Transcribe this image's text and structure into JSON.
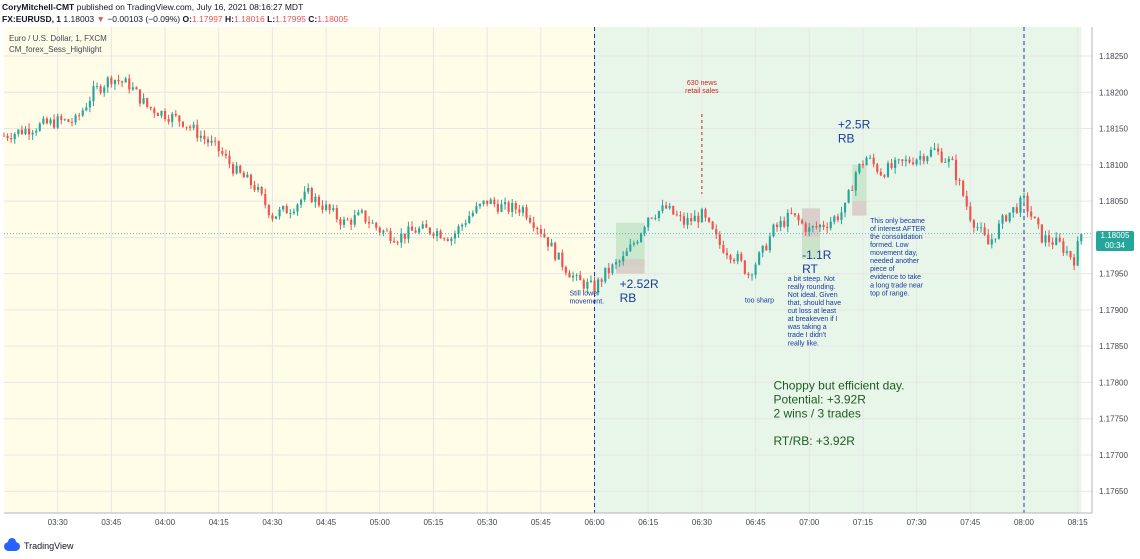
{
  "header": {
    "line1_user": "CoryMitchell-CMT",
    "line1_rest": " published on TradingView.com, July 16, 2021 08:16:27 MDT",
    "symbol": "FX:EURUSD, 1",
    "price": "1.18003",
    "arrow": "▼",
    "change": "−0.00103 (−0.09%)",
    "o_label": "O:",
    "o_value": "1.17997",
    "h_label": "H:",
    "h_value": "1.18016",
    "l_label": "L:",
    "l_value": "1.17995",
    "c_label": "C:",
    "c_value": "1.18005"
  },
  "legend": {
    "instrument": "Euro / U.S. Dollar, 1, FXCM",
    "indicator": "CM_forex_Sess_Highlight"
  },
  "price_tag": {
    "price": "1.18005",
    "time": "00:34"
  },
  "footer": {
    "brand": "TradingView"
  },
  "colors": {
    "bull": "#26a69a",
    "bear": "#ef5350",
    "session_asia": "#fffde7",
    "session_london": "#e8f5e9",
    "note_blue": "#1a3a9e",
    "note_green": "#1b5e20",
    "note_red": "#c62828"
  },
  "chart_data": {
    "type": "candlestick",
    "x_start": "03:15",
    "x_end": "08:19",
    "x_ticks": [
      "03:30",
      "03:45",
      "04:00",
      "04:15",
      "04:30",
      "04:45",
      "05:00",
      "05:15",
      "05:30",
      "05:45",
      "06:00",
      "06:15",
      "06:30",
      "06:45",
      "07:00",
      "07:15",
      "07:30",
      "07:45",
      "08:00",
      "08:15"
    ],
    "y_ticks": [
      "1.17650",
      "1.17700",
      "1.17750",
      "1.17800",
      "1.17850",
      "1.17900",
      "1.17950",
      "1.18000",
      "1.18050",
      "1.18100",
      "1.18150",
      "1.18200",
      "1.18250"
    ],
    "ylim": [
      1.1762,
      1.1829
    ],
    "grid": true,
    "sessions": [
      {
        "start": "03:15",
        "end": "06:00",
        "color": "#fffde7"
      },
      {
        "start": "06:00",
        "end": "08:16",
        "color": "#e8f5e9"
      }
    ],
    "vlines": [
      "06:00",
      "08:00"
    ],
    "news_marker": {
      "time": "06:30",
      "label1": "630 news",
      "label2": "retail sales"
    },
    "path": [
      [
        "03:15",
        1.1814
      ],
      [
        "03:22",
        1.1815
      ],
      [
        "03:30",
        1.1816
      ],
      [
        "03:35",
        1.1816
      ],
      [
        "03:40",
        1.182
      ],
      [
        "03:45",
        1.1822
      ],
      [
        "03:50",
        1.1821
      ],
      [
        "03:55",
        1.1818
      ],
      [
        "04:00",
        1.1817
      ],
      [
        "04:05",
        1.1816
      ],
      [
        "04:10",
        1.1814
      ],
      [
        "04:15",
        1.1812
      ],
      [
        "04:20",
        1.1809
      ],
      [
        "04:25",
        1.1807
      ],
      [
        "04:30",
        1.1803
      ],
      [
        "04:35",
        1.1804
      ],
      [
        "04:40",
        1.1806
      ],
      [
        "04:45",
        1.1804
      ],
      [
        "04:50",
        1.1802
      ],
      [
        "04:55",
        1.1803
      ],
      [
        "05:00",
        1.1801
      ],
      [
        "05:05",
        1.18
      ],
      [
        "05:10",
        1.1801
      ],
      [
        "05:15",
        1.1801
      ],
      [
        "05:20",
        1.18
      ],
      [
        "05:25",
        1.1803
      ],
      [
        "05:30",
        1.1805
      ],
      [
        "05:35",
        1.1804
      ],
      [
        "05:40",
        1.1804
      ],
      [
        "05:45",
        1.1801
      ],
      [
        "05:50",
        1.1797
      ],
      [
        "05:55",
        1.1794
      ],
      [
        "06:00",
        1.1793
      ],
      [
        "06:03",
        1.1795
      ],
      [
        "06:08",
        1.1797
      ],
      [
        "06:12",
        1.18
      ],
      [
        "06:15",
        1.1803
      ],
      [
        "06:20",
        1.1804
      ],
      [
        "06:25",
        1.1802
      ],
      [
        "06:30",
        1.1803
      ],
      [
        "06:35",
        1.1799
      ],
      [
        "06:40",
        1.1797
      ],
      [
        "06:43",
        1.1795
      ],
      [
        "06:47",
        1.1798
      ],
      [
        "06:50",
        1.1801
      ],
      [
        "06:55",
        1.1803
      ],
      [
        "07:00",
        1.1801
      ],
      [
        "07:05",
        1.1802
      ],
      [
        "07:08",
        1.1803
      ],
      [
        "07:10",
        1.1804
      ],
      [
        "07:13",
        1.1809
      ],
      [
        "07:16",
        1.1811
      ],
      [
        "07:20",
        1.1809
      ],
      [
        "07:25",
        1.181
      ],
      [
        "07:30",
        1.1811
      ],
      [
        "07:35",
        1.1812
      ],
      [
        "07:40",
        1.181
      ],
      [
        "07:45",
        1.1803
      ],
      [
        "07:50",
        1.1799
      ],
      [
        "07:55",
        1.1803
      ],
      [
        "08:00",
        1.1805
      ],
      [
        "08:05",
        1.18
      ],
      [
        "08:10",
        1.1799
      ],
      [
        "08:14",
        1.1797
      ],
      [
        "08:16",
        1.18005
      ]
    ],
    "trade_boxes": [
      {
        "start": "06:06",
        "end": "06:14",
        "top": 1.1802,
        "bottom": 1.1796,
        "color": "#c8e6c9"
      },
      {
        "start": "06:06",
        "end": "06:14",
        "top": 1.1797,
        "bottom": 1.1795,
        "color": "#d7ccc8"
      },
      {
        "start": "06:58",
        "end": "07:03",
        "top": 1.1804,
        "bottom": 1.1797,
        "color": "#d7ccc8"
      },
      {
        "start": "06:58",
        "end": "07:03",
        "top": 1.18,
        "bottom": 1.1797,
        "color": "#c8e6c9"
      },
      {
        "start": "07:12",
        "end": "07:16",
        "top": 1.181,
        "bottom": 1.1805,
        "color": "#c8e6c9"
      },
      {
        "start": "07:12",
        "end": "07:16",
        "top": 1.1805,
        "bottom": 1.1803,
        "color": "#d7ccc8"
      }
    ],
    "annotations": [
      {
        "x": "05:53",
        "y": 1.1792,
        "size": 7,
        "color": "#1a3a9e",
        "bold": false,
        "lines": [
          "Still lower",
          "movement."
        ]
      },
      {
        "x": "06:07",
        "y": 1.1793,
        "size": 12,
        "color": "#1a3a9e",
        "bold": false,
        "lines": [
          "+2.52R",
          "RB"
        ]
      },
      {
        "x": "06:42",
        "y": 1.1791,
        "size": 7,
        "color": "#1a3a9e",
        "bold": false,
        "lines": [
          "too sharp"
        ]
      },
      {
        "x": "06:54",
        "y": 1.1794,
        "size": 7,
        "color": "#1a3a9e",
        "bold": false,
        "lines": [
          "a bit steep. Not",
          "really rounding.",
          "Not ideal. Given",
          "that, should have",
          "cut loss at least",
          "at breakeven if I",
          "was taking a",
          "trade I didn't",
          "really like."
        ]
      },
      {
        "x": "06:58",
        "y": 1.1797,
        "size": 12,
        "color": "#1a3a9e",
        "bold": false,
        "lines": [
          "-1.1R",
          "RT"
        ]
      },
      {
        "x": "07:08",
        "y": 1.1815,
        "size": 12,
        "color": "#1a3a9e",
        "bold": false,
        "lines": [
          "+2.5R",
          "RB"
        ]
      },
      {
        "x": "07:17",
        "y": 1.1802,
        "size": 7,
        "color": "#1a3a9e",
        "bold": false,
        "lines": [
          "This only became",
          "of interest AFTER",
          "the consolidation",
          "formed. Low",
          "movement day,",
          "needed another",
          "piece of",
          "evidence to take",
          "a long trade near",
          "top of range."
        ]
      },
      {
        "x": "06:50",
        "y": 1.1779,
        "size": 12,
        "color": "#1b5e20",
        "bold": false,
        "lines": [
          "Choppy but efficient day.",
          "Potential: +3.92R",
          "2 wins / 3 trades",
          "",
          "RT/RB: +3.92R"
        ]
      }
    ]
  }
}
